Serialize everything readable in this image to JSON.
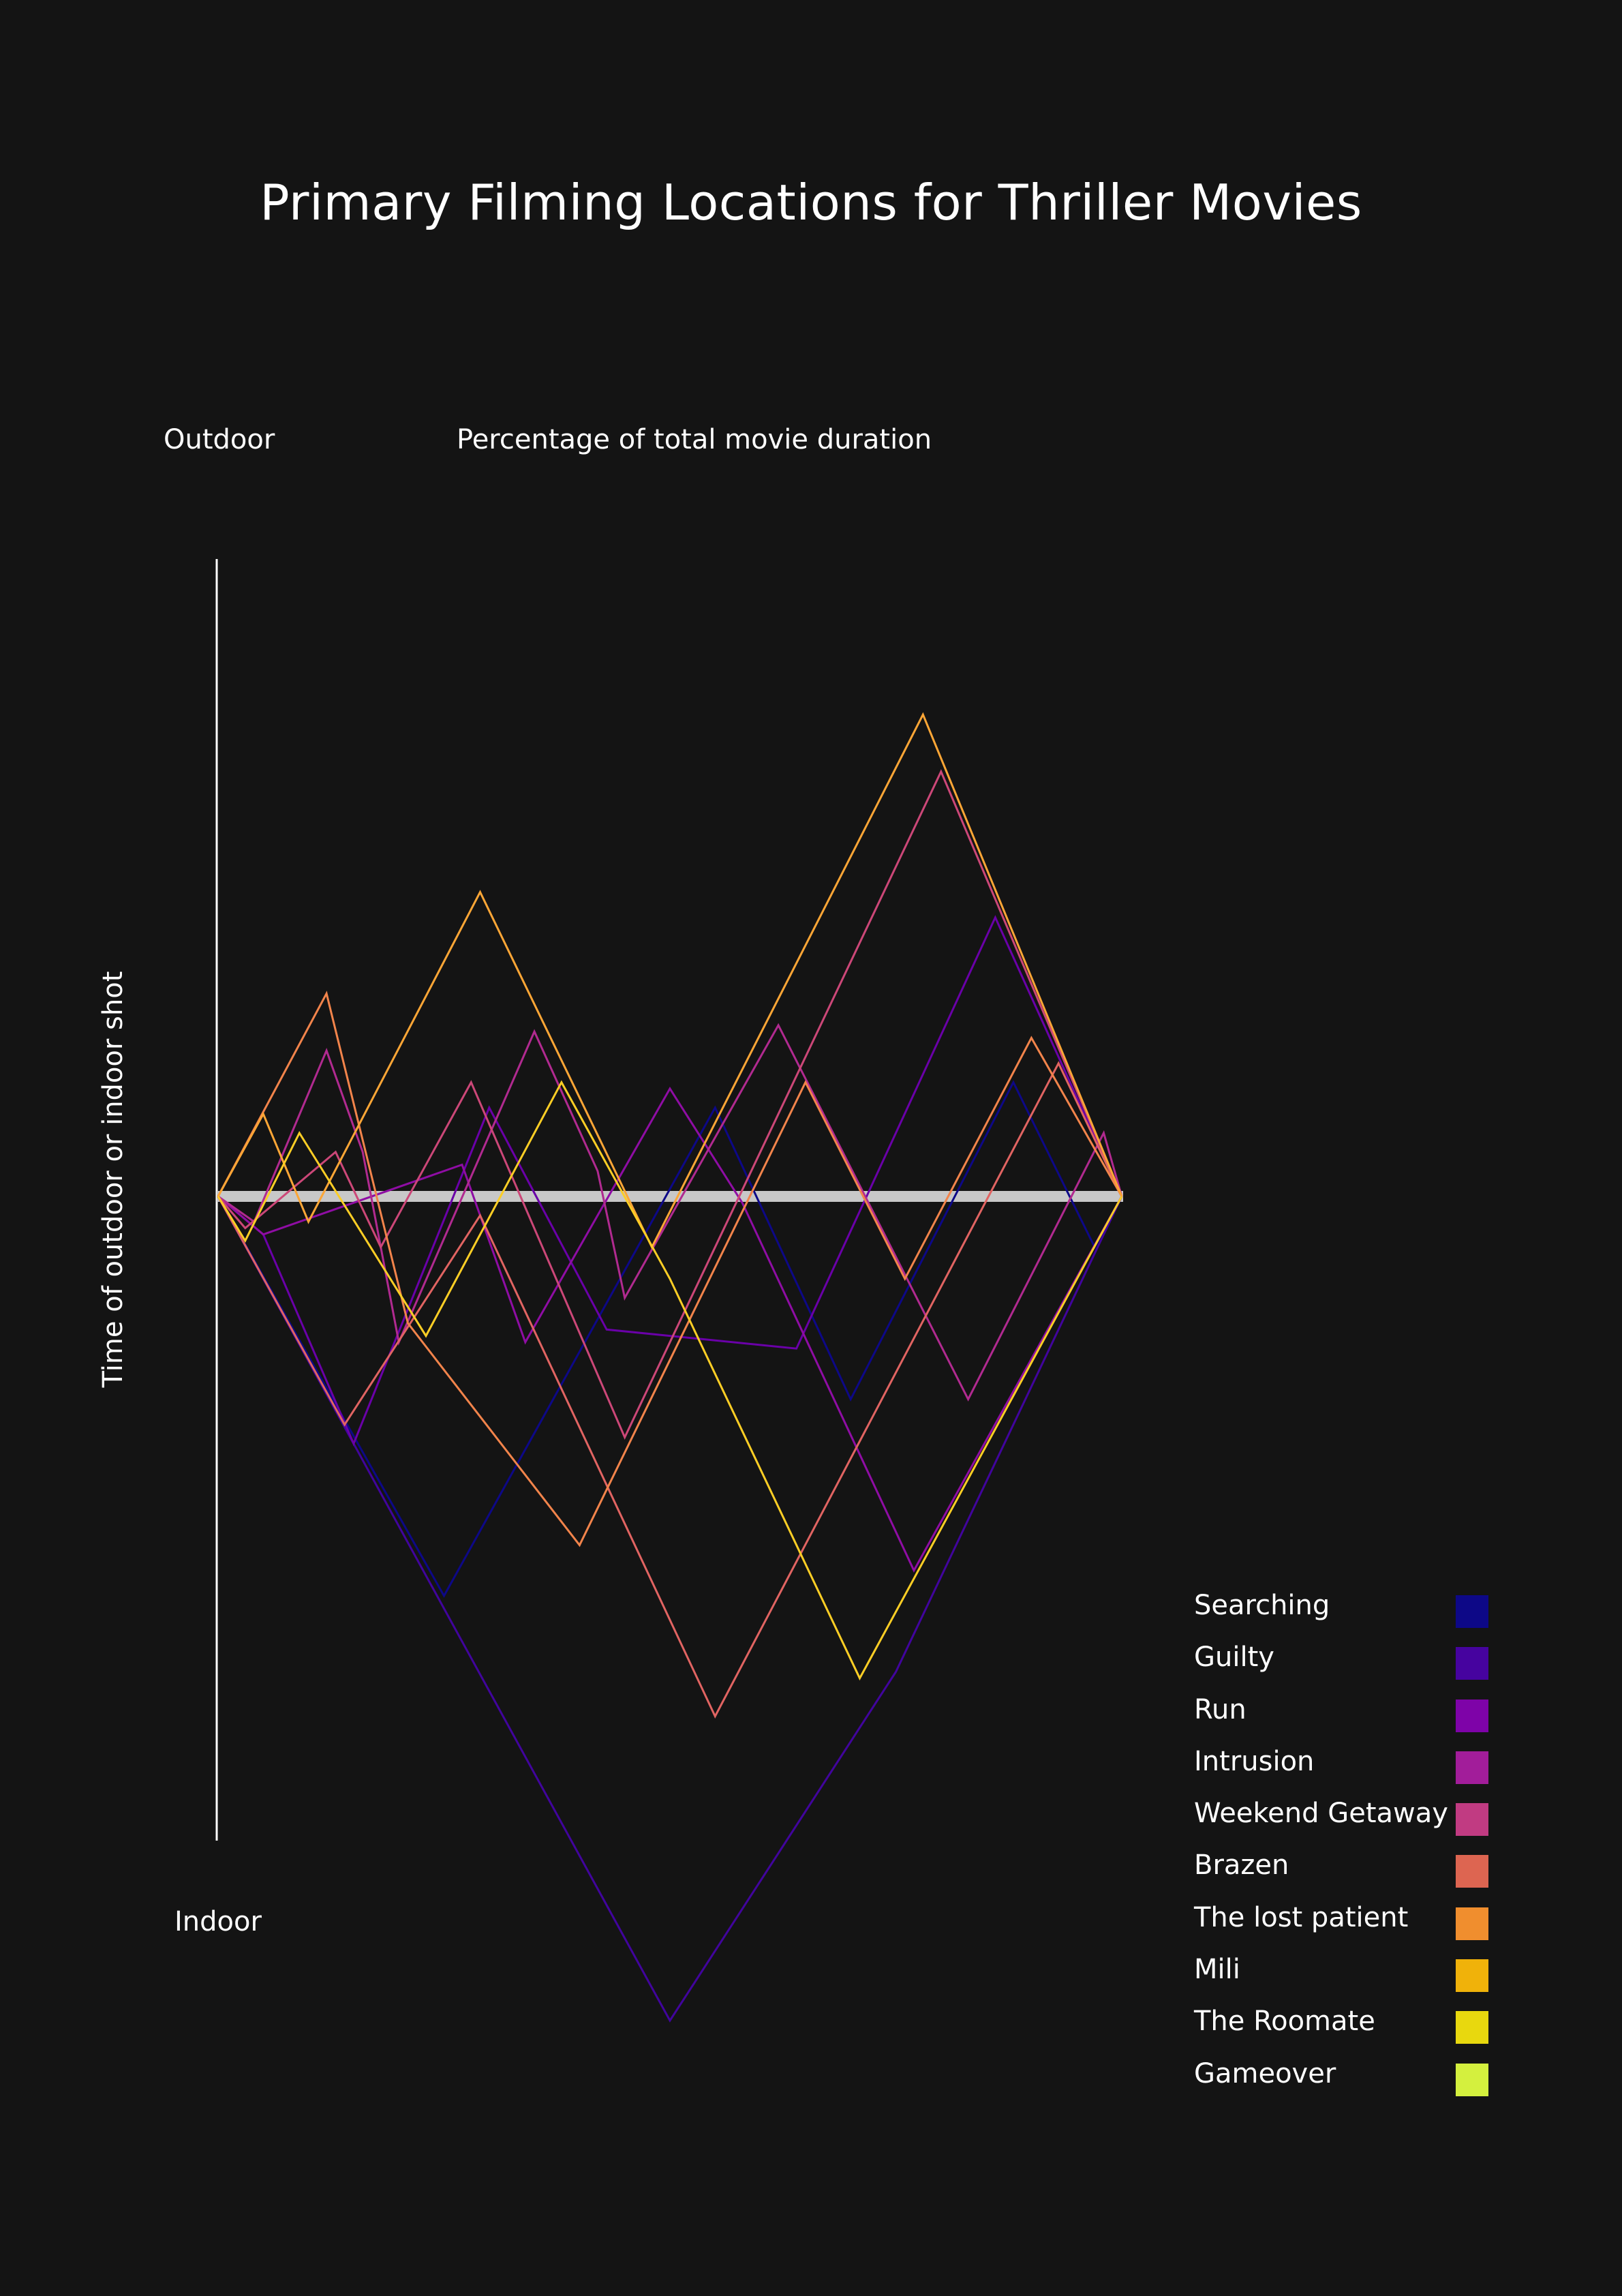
{
  "chart_data": {
    "type": "line",
    "title": "Primary Filming Locations for Thriller Movies",
    "xlabel": "Percentage of total movie duration",
    "ylabel": "Time of outdoor or indoor shot",
    "y_top_label": "Outdoor",
    "y_bottom_label": "Indoor",
    "xlim": [
      0,
      100
    ],
    "ylim": [
      -1,
      1
    ],
    "grid": false,
    "legend_position": "bottom-right",
    "series": [
      {
        "name": "Searching",
        "color": "#0d0887",
        "points": [
          [
            0,
            0
          ],
          [
            25,
            -0.63
          ],
          [
            55,
            0.14
          ],
          [
            70,
            -0.32
          ],
          [
            88,
            0.18
          ],
          [
            97,
            -0.08
          ],
          [
            100,
            0
          ]
        ]
      },
      {
        "name": "Guilty",
        "color": "#41049d",
        "points": [
          [
            0,
            0
          ],
          [
            15,
            -0.39
          ],
          [
            50,
            -1.3
          ],
          [
            75,
            -0.75
          ],
          [
            100,
            0
          ]
        ]
      },
      {
        "name": "Run",
        "color": "#6a00a8",
        "points": [
          [
            0,
            0
          ],
          [
            5,
            -0.06
          ],
          [
            15,
            -0.39
          ],
          [
            30,
            0.14
          ],
          [
            43,
            -0.21
          ],
          [
            64,
            -0.24
          ],
          [
            86,
            0.44
          ],
          [
            100,
            0
          ]
        ]
      },
      {
        "name": "Intrusion",
        "color": "#8f0da4",
        "points": [
          [
            0,
            0
          ],
          [
            5,
            -0.06
          ],
          [
            27,
            0.05
          ],
          [
            34,
            -0.23
          ],
          [
            50,
            0.17
          ],
          [
            58,
            -0.01
          ],
          [
            77,
            -0.59
          ],
          [
            100,
            0
          ]
        ]
      },
      {
        "name": "Weekend Getaway",
        "color": "#b12a90",
        "points": [
          [
            0,
            0
          ],
          [
            4,
            -0.04
          ],
          [
            12,
            0.23
          ],
          [
            16,
            0.07
          ],
          [
            20,
            -0.23
          ],
          [
            35,
            0.26
          ],
          [
            42,
            0.04
          ],
          [
            45,
            -0.16
          ],
          [
            62,
            0.27
          ],
          [
            83,
            -0.32
          ],
          [
            98,
            0.1
          ],
          [
            100,
            0
          ]
        ]
      },
      {
        "name": "Brazen",
        "color": "#cc4778",
        "points": [
          [
            0,
            0
          ],
          [
            3,
            -0.05
          ],
          [
            13,
            0.07
          ],
          [
            18,
            -0.08
          ],
          [
            28,
            0.18
          ],
          [
            45,
            -0.38
          ],
          [
            80,
            0.67
          ],
          [
            100,
            0
          ]
        ]
      },
      {
        "name": "The lost patient",
        "color": "#e16462",
        "points": [
          [
            0,
            0
          ],
          [
            14,
            -0.36
          ],
          [
            29,
            -0.03
          ],
          [
            55,
            -0.82
          ],
          [
            93,
            0.21
          ],
          [
            100,
            0
          ]
        ]
      },
      {
        "name": "Mili",
        "color": "#f2844b",
        "points": [
          [
            0,
            0
          ],
          [
            12,
            0.32
          ],
          [
            21,
            -0.2
          ],
          [
            40,
            -0.55
          ],
          [
            65,
            0.18
          ],
          [
            76,
            -0.13
          ],
          [
            90,
            0.25
          ],
          [
            100,
            0
          ]
        ]
      },
      {
        "name": "The Roomate",
        "color": "#fca636",
        "points": [
          [
            0,
            0
          ],
          [
            5,
            0.13
          ],
          [
            10,
            -0.04
          ],
          [
            29,
            0.48
          ],
          [
            48,
            -0.08
          ],
          [
            78,
            0.76
          ],
          [
            100,
            0
          ]
        ]
      },
      {
        "name": "Gameover",
        "color": "#fcce25",
        "points": [
          [
            0,
            0
          ],
          [
            3,
            -0.07
          ],
          [
            9,
            0.1
          ],
          [
            23,
            -0.22
          ],
          [
            38,
            0.18
          ],
          [
            50,
            -0.13
          ],
          [
            71,
            -0.76
          ],
          [
            100,
            0
          ]
        ]
      }
    ]
  },
  "legend_colors": [
    "#0d0887",
    "#46039f",
    "#7e03a8",
    "#a21d9a",
    "#c13b82",
    "#dd6551",
    "#f08e2e",
    "#f0b20a",
    "#e8d80e",
    "#d4f03e"
  ]
}
